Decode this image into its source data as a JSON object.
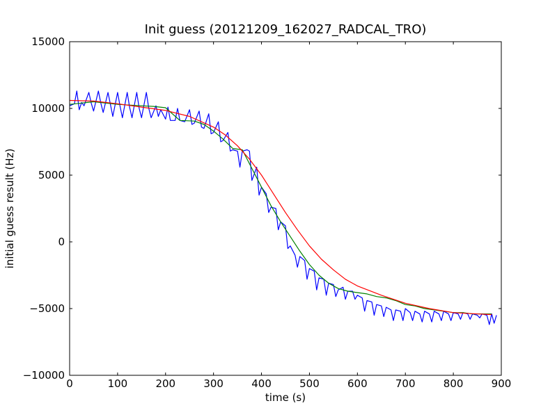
{
  "chart_data": {
    "type": "line",
    "title": "Init guess (20121209_162027_RADCAL_TRO)",
    "xlabel": "time (s)",
    "ylabel": "initial guess result (Hz)",
    "xlim": [
      0,
      900
    ],
    "ylim": [
      -10000,
      15000
    ],
    "grid": false,
    "x_ticks": [
      0,
      100,
      200,
      300,
      400,
      500,
      600,
      700,
      800,
      900
    ],
    "y_ticks": [
      -10000,
      -5000,
      0,
      5000,
      10000,
      15000
    ],
    "x_tick_labels": [
      "0",
      "100",
      "200",
      "300",
      "400",
      "500",
      "600",
      "700",
      "800",
      "900"
    ],
    "y_tick_labels": [
      "−10000",
      "−5000",
      "0",
      "5000",
      "10000",
      "15000"
    ],
    "series": [
      {
        "color": "#0000ff",
        "x": [
          0,
          10,
          15,
          20,
          25,
          30,
          40,
          45,
          50,
          60,
          65,
          70,
          80,
          85,
          90,
          100,
          105,
          110,
          120,
          125,
          130,
          140,
          145,
          150,
          160,
          165,
          170,
          180,
          185,
          190,
          200,
          205,
          210,
          220,
          225,
          230,
          240,
          250,
          255,
          260,
          270,
          275,
          280,
          290,
          295,
          300,
          310,
          315,
          320,
          330,
          335,
          340,
          350,
          355,
          360,
          370,
          375,
          380,
          390,
          395,
          400,
          410,
          415,
          420,
          430,
          435,
          440,
          450,
          455,
          460,
          470,
          475,
          480,
          490,
          495,
          500,
          510,
          515,
          520,
          530,
          535,
          540,
          550,
          555,
          560,
          570,
          575,
          580,
          590,
          595,
          600,
          610,
          615,
          620,
          630,
          635,
          640,
          650,
          655,
          660,
          670,
          675,
          680,
          690,
          695,
          700,
          710,
          715,
          720,
          730,
          735,
          740,
          750,
          755,
          760,
          770,
          775,
          780,
          790,
          795,
          800,
          810,
          815,
          820,
          830,
          835,
          840,
          850,
          855,
          860,
          870,
          875,
          880,
          885,
          890
        ],
        "y": [
          10200,
          10350,
          11300,
          9900,
          10450,
          10200,
          11200,
          10400,
          9800,
          11300,
          10400,
          9700,
          11200,
          10300,
          9400,
          11200,
          10200,
          9300,
          11200,
          10100,
          9300,
          11200,
          10000,
          9300,
          11200,
          10000,
          9300,
          10200,
          9400,
          9900,
          9200,
          10100,
          9100,
          9100,
          10000,
          9100,
          9000,
          9900,
          8800,
          8900,
          9800,
          8600,
          8500,
          9600,
          8100,
          8200,
          9000,
          7500,
          7600,
          8200,
          6800,
          6900,
          6800,
          5600,
          6800,
          6900,
          6800,
          4600,
          5600,
          3500,
          4100,
          3600,
          2200,
          2600,
          2500,
          900,
          1500,
          1200,
          -500,
          -300,
          -1000,
          -1900,
          -1100,
          -1400,
          -2800,
          -2000,
          -2200,
          -3600,
          -2700,
          -2800,
          -4000,
          -3100,
          -3200,
          -4100,
          -3600,
          -3400,
          -4300,
          -3700,
          -3700,
          -4300,
          -4000,
          -4200,
          -5200,
          -4400,
          -4500,
          -5500,
          -4700,
          -4800,
          -5600,
          -4900,
          -5100,
          -5900,
          -5100,
          -5200,
          -5900,
          -5000,
          -5300,
          -5900,
          -5200,
          -5400,
          -6000,
          -5200,
          -5400,
          -6000,
          -5200,
          -5400,
          -5900,
          -5200,
          -5400,
          -5900,
          -5300,
          -5400,
          -5800,
          -5300,
          -5400,
          -5800,
          -5400,
          -5500,
          -5700,
          -5400,
          -5500,
          -6200,
          -5400,
          -6100,
          -5500
        ]
      },
      {
        "color": "#008000",
        "x": [
          0,
          25,
          50,
          75,
          100,
          125,
          150,
          175,
          200,
          230,
          260,
          280,
          300,
          320,
          340,
          360,
          380,
          400,
          420,
          440,
          460,
          480,
          500,
          520,
          540,
          560,
          580,
          600,
          620,
          640,
          660,
          680,
          700,
          720,
          740,
          760,
          780,
          800,
          820,
          840,
          860,
          880
        ],
        "y": [
          10300,
          10400,
          10500,
          10400,
          10300,
          10250,
          10200,
          10150,
          10050,
          9100,
          9050,
          8800,
          8300,
          7700,
          7000,
          6900,
          5500,
          4100,
          2700,
          1500,
          400,
          -700,
          -1700,
          -2500,
          -3100,
          -3500,
          -3700,
          -3800,
          -3900,
          -4100,
          -4200,
          -4400,
          -4700,
          -4800,
          -5000,
          -5100,
          -5200,
          -5300,
          -5300,
          -5400,
          -5400,
          -5400
        ]
      },
      {
        "color": "#ff0000",
        "x": [
          0,
          50,
          100,
          150,
          200,
          250,
          300,
          325,
          350,
          375,
          400,
          425,
          450,
          475,
          500,
          525,
          550,
          575,
          600,
          650,
          700,
          750,
          800,
          850,
          880
        ],
        "y": [
          10600,
          10550,
          10350,
          10100,
          9850,
          9400,
          8600,
          8000,
          7200,
          6200,
          5000,
          3600,
          2200,
          900,
          -300,
          -1300,
          -2100,
          -2800,
          -3300,
          -4000,
          -4600,
          -5000,
          -5300,
          -5400,
          -5450
        ]
      }
    ]
  }
}
